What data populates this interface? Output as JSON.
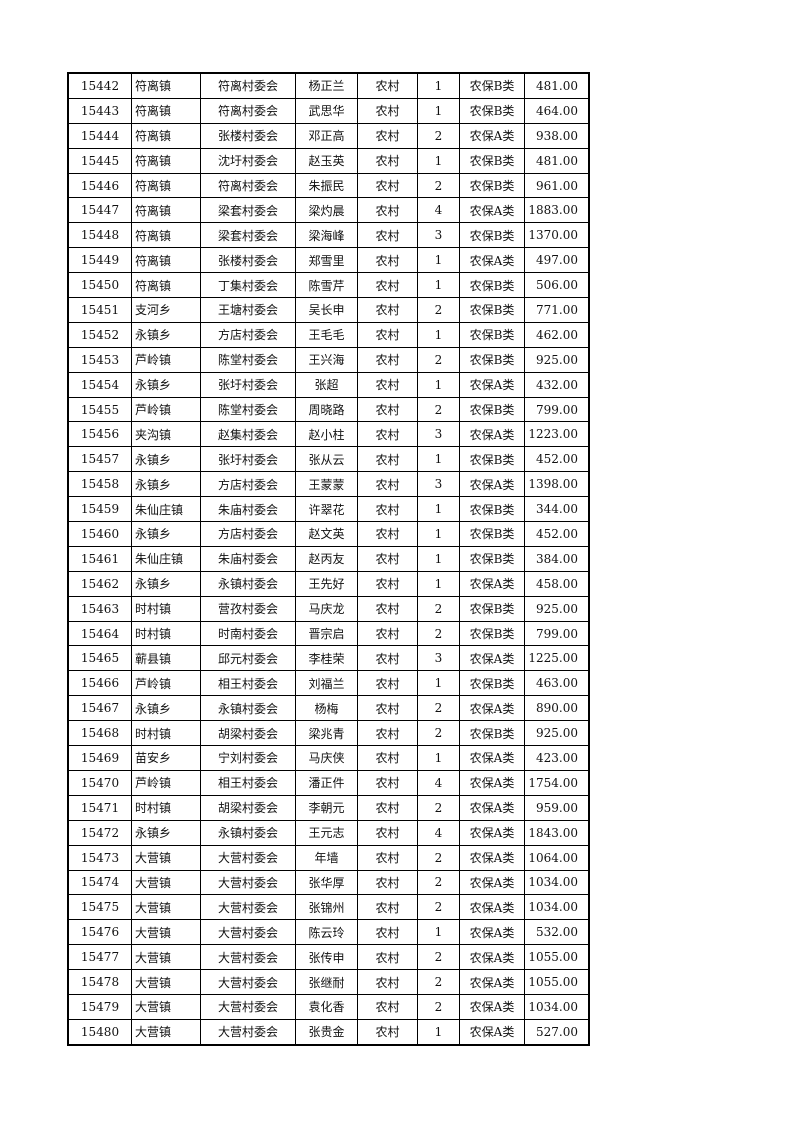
{
  "table": {
    "rows": [
      [
        "15442",
        "符离镇",
        "符离村委会",
        "杨正兰",
        "农村",
        "1",
        "农保B类",
        "481.00"
      ],
      [
        "15443",
        "符离镇",
        "符离村委会",
        "武思华",
        "农村",
        "1",
        "农保B类",
        "464.00"
      ],
      [
        "15444",
        "符离镇",
        "张楼村委会",
        "邓正高",
        "农村",
        "2",
        "农保A类",
        "938.00"
      ],
      [
        "15445",
        "符离镇",
        "沈圩村委会",
        "赵玉英",
        "农村",
        "1",
        "农保B类",
        "481.00"
      ],
      [
        "15446",
        "符离镇",
        "符离村委会",
        "朱振民",
        "农村",
        "2",
        "农保B类",
        "961.00"
      ],
      [
        "15447",
        "符离镇",
        "梁套村委会",
        "梁灼晨",
        "农村",
        "4",
        "农保A类",
        "1883.00"
      ],
      [
        "15448",
        "符离镇",
        "梁套村委会",
        "梁海峰",
        "农村",
        "3",
        "农保B类",
        "1370.00"
      ],
      [
        "15449",
        "符离镇",
        "张楼村委会",
        "郑雪里",
        "农村",
        "1",
        "农保A类",
        "497.00"
      ],
      [
        "15450",
        "符离镇",
        "丁集村委会",
        "陈雪芹",
        "农村",
        "1",
        "农保B类",
        "506.00"
      ],
      [
        "15451",
        "支河乡",
        "王塘村委会",
        "吴长申",
        "农村",
        "2",
        "农保B类",
        "771.00"
      ],
      [
        "15452",
        "永镇乡",
        "方店村委会",
        "王毛毛",
        "农村",
        "1",
        "农保B类",
        "462.00"
      ],
      [
        "15453",
        "芦岭镇",
        "陈堂村委会",
        "王兴海",
        "农村",
        "2",
        "农保B类",
        "925.00"
      ],
      [
        "15454",
        "永镇乡",
        "张圩村委会",
        "张超",
        "农村",
        "1",
        "农保A类",
        "432.00"
      ],
      [
        "15455",
        "芦岭镇",
        "陈堂村委会",
        "周晓路",
        "农村",
        "2",
        "农保B类",
        "799.00"
      ],
      [
        "15456",
        "夹沟镇",
        "赵集村委会",
        "赵小柱",
        "农村",
        "3",
        "农保A类",
        "1223.00"
      ],
      [
        "15457",
        "永镇乡",
        "张圩村委会",
        "张从云",
        "农村",
        "1",
        "农保B类",
        "452.00"
      ],
      [
        "15458",
        "永镇乡",
        "方店村委会",
        "王蒙蒙",
        "农村",
        "3",
        "农保A类",
        "1398.00"
      ],
      [
        "15459",
        "朱仙庄镇",
        "朱庙村委会",
        "许翠花",
        "农村",
        "1",
        "农保B类",
        "344.00"
      ],
      [
        "15460",
        "永镇乡",
        "方店村委会",
        "赵文英",
        "农村",
        "1",
        "农保B类",
        "452.00"
      ],
      [
        "15461",
        "朱仙庄镇",
        "朱庙村委会",
        "赵丙友",
        "农村",
        "1",
        "农保B类",
        "384.00"
      ],
      [
        "15462",
        "永镇乡",
        "永镇村委会",
        "王先好",
        "农村",
        "1",
        "农保A类",
        "458.00"
      ],
      [
        "15463",
        "时村镇",
        "营孜村委会",
        "马庆龙",
        "农村",
        "2",
        "农保B类",
        "925.00"
      ],
      [
        "15464",
        "时村镇",
        "时南村委会",
        "晋宗启",
        "农村",
        "2",
        "农保B类",
        "799.00"
      ],
      [
        "15465",
        "蕲县镇",
        "邱元村委会",
        "李桂荣",
        "农村",
        "3",
        "农保A类",
        "1225.00"
      ],
      [
        "15466",
        "芦岭镇",
        "相王村委会",
        "刘福兰",
        "农村",
        "1",
        "农保B类",
        "463.00"
      ],
      [
        "15467",
        "永镇乡",
        "永镇村委会",
        "杨梅",
        "农村",
        "2",
        "农保A类",
        "890.00"
      ],
      [
        "15468",
        "时村镇",
        "胡梁村委会",
        "梁兆青",
        "农村",
        "2",
        "农保B类",
        "925.00"
      ],
      [
        "15469",
        "苗安乡",
        "宁刘村委会",
        "马庆侠",
        "农村",
        "1",
        "农保A类",
        "423.00"
      ],
      [
        "15470",
        "芦岭镇",
        "相王村委会",
        "潘正件",
        "农村",
        "4",
        "农保A类",
        "1754.00"
      ],
      [
        "15471",
        "时村镇",
        "胡梁村委会",
        "李朝元",
        "农村",
        "2",
        "农保A类",
        "959.00"
      ],
      [
        "15472",
        "永镇乡",
        "永镇村委会",
        "王元志",
        "农村",
        "4",
        "农保A类",
        "1843.00"
      ],
      [
        "15473",
        "大营镇",
        "大营村委会",
        "年墙",
        "农村",
        "2",
        "农保A类",
        "1064.00"
      ],
      [
        "15474",
        "大营镇",
        "大营村委会",
        "张华厚",
        "农村",
        "2",
        "农保A类",
        "1034.00"
      ],
      [
        "15475",
        "大营镇",
        "大营村委会",
        "张锦州",
        "农村",
        "2",
        "农保A类",
        "1034.00"
      ],
      [
        "15476",
        "大营镇",
        "大营村委会",
        "陈云玲",
        "农村",
        "1",
        "农保A类",
        "532.00"
      ],
      [
        "15477",
        "大营镇",
        "大营村委会",
        "张传申",
        "农村",
        "2",
        "农保A类",
        "1055.00"
      ],
      [
        "15478",
        "大营镇",
        "大营村委会",
        "张继耐",
        "农村",
        "2",
        "农保A类",
        "1055.00"
      ],
      [
        "15479",
        "大营镇",
        "大营村委会",
        "袁化香",
        "农村",
        "2",
        "农保A类",
        "1034.00"
      ],
      [
        "15480",
        "大营镇",
        "大营村委会",
        "张贵金",
        "农村",
        "1",
        "农保A类",
        "527.00"
      ]
    ]
  }
}
